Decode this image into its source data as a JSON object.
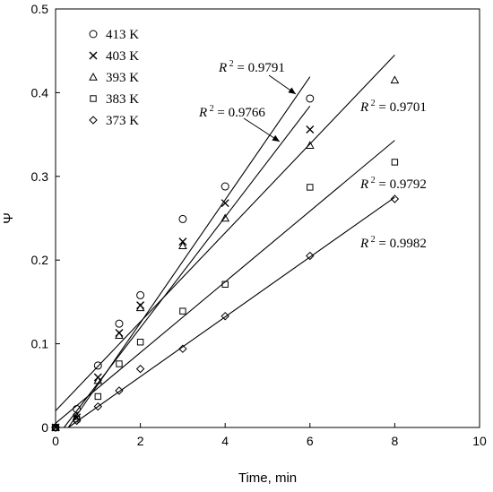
{
  "chart_data": {
    "type": "scatter",
    "title": "",
    "xlabel": "Time, min",
    "ylabel": "Ψ",
    "xlim": [
      0,
      10
    ],
    "ylim": [
      0,
      0.5
    ],
    "xticks": [
      "0",
      "2",
      "4",
      "6",
      "8",
      "10"
    ],
    "yticks": [
      "0",
      "0.1",
      "0.2",
      "0.3",
      "0.4",
      "0.5"
    ],
    "grid": false,
    "legend_position": "top-left",
    "series": [
      {
        "name": "413 K",
        "marker": "circle",
        "x": [
          0,
          0.5,
          1,
          1.5,
          2,
          3,
          4,
          6
        ],
        "y": [
          0.0,
          0.022,
          0.074,
          0.124,
          0.158,
          0.249,
          0.288,
          0.393
        ],
        "fit": {
          "x": [
            0.3,
            6
          ],
          "y": [
            0.0,
            0.419
          ]
        },
        "r2_label": {
          "text": "R",
          "sup": "2",
          "rest": " = 0.9791"
        }
      },
      {
        "name": "403 K",
        "marker": "cross",
        "x": [
          0,
          0.5,
          1,
          1.5,
          2,
          3,
          4,
          6
        ],
        "y": [
          0.0,
          0.012,
          0.06,
          0.113,
          0.146,
          0.222,
          0.268,
          0.356
        ],
        "fit": {
          "x": [
            0.2,
            6
          ],
          "y": [
            0.0,
            0.384
          ]
        },
        "r2_label": {
          "text": "R",
          "sup": "2",
          "rest": " = 0.9766"
        }
      },
      {
        "name": "393 K",
        "marker": "triangle",
        "x": [
          0,
          0.5,
          1,
          1.5,
          2,
          3,
          4,
          6,
          8
        ],
        "y": [
          0.0,
          0.013,
          0.056,
          0.11,
          0.143,
          0.217,
          0.25,
          0.337,
          0.415
        ],
        "fit": {
          "x": [
            0,
            8
          ],
          "y": [
            0.02,
            0.445
          ]
        },
        "r2_label": {
          "text": "R",
          "sup": "2",
          "rest": " = 0.9701"
        }
      },
      {
        "name": "383 K",
        "marker": "square",
        "x": [
          0,
          0.5,
          1,
          1.5,
          2,
          3,
          4,
          6,
          8
        ],
        "y": [
          0.0,
          0.01,
          0.037,
          0.076,
          0.102,
          0.139,
          0.171,
          0.287,
          0.317
        ],
        "fit": {
          "x": [
            0,
            8
          ],
          "y": [
            0.005,
            0.343
          ]
        },
        "r2_label": {
          "text": "R",
          "sup": "2",
          "rest": " = 0.9792"
        }
      },
      {
        "name": "373 K",
        "marker": "diamond",
        "x": [
          0,
          0.5,
          1,
          1.5,
          2,
          3,
          4,
          6,
          8
        ],
        "y": [
          0.0,
          0.008,
          0.025,
          0.044,
          0.07,
          0.094,
          0.133,
          0.205,
          0.273
        ],
        "fit": {
          "x": [
            0.3,
            8
          ],
          "y": [
            0.0,
            0.275
          ]
        },
        "r2_label": {
          "text": "R",
          "sup": "2",
          "rest": " = 0.9982"
        }
      }
    ]
  }
}
